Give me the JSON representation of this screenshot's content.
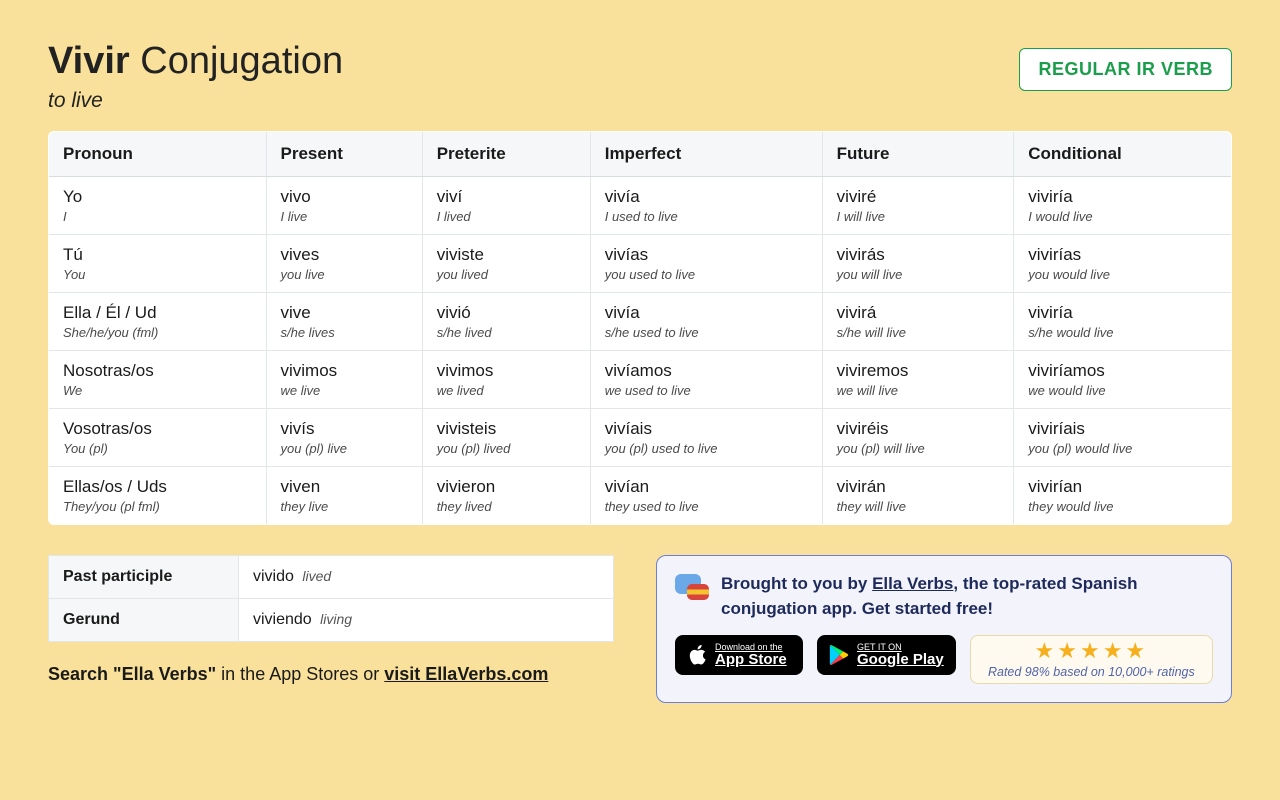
{
  "header": {
    "verb": "Vivir",
    "title_rest": " Conjugation",
    "subtitle": "to live",
    "badge": "REGULAR IR VERB"
  },
  "columns": [
    "Pronoun",
    "Present",
    "Preterite",
    "Imperfect",
    "Future",
    "Conditional"
  ],
  "rows": [
    {
      "pronoun": "Yo",
      "pronoun_sub": "I",
      "cells": [
        {
          "m": "vivo",
          "s": "I live"
        },
        {
          "m": "viví",
          "s": "I lived"
        },
        {
          "m": "vivía",
          "s": "I used to live"
        },
        {
          "m": "viviré",
          "s": "I will live"
        },
        {
          "m": "viviría",
          "s": "I would live"
        }
      ]
    },
    {
      "pronoun": "Tú",
      "pronoun_sub": "You",
      "cells": [
        {
          "m": "vives",
          "s": "you live"
        },
        {
          "m": "viviste",
          "s": "you lived"
        },
        {
          "m": "vivías",
          "s": "you used to live"
        },
        {
          "m": "vivirás",
          "s": "you will live"
        },
        {
          "m": "vivirías",
          "s": "you would live"
        }
      ]
    },
    {
      "pronoun": "Ella / Él / Ud",
      "pronoun_sub": "She/he/you (fml)",
      "cells": [
        {
          "m": "vive",
          "s": "s/he lives"
        },
        {
          "m": "vivió",
          "s": "s/he lived"
        },
        {
          "m": "vivía",
          "s": "s/he used to live"
        },
        {
          "m": "vivirá",
          "s": "s/he will live"
        },
        {
          "m": "viviría",
          "s": "s/he would live"
        }
      ]
    },
    {
      "pronoun": "Nosotras/os",
      "pronoun_sub": "We",
      "cells": [
        {
          "m": "vivimos",
          "s": "we live"
        },
        {
          "m": "vivimos",
          "s": "we lived"
        },
        {
          "m": "vivíamos",
          "s": "we used to live"
        },
        {
          "m": "viviremos",
          "s": "we will live"
        },
        {
          "m": "viviríamos",
          "s": "we would live"
        }
      ]
    },
    {
      "pronoun": "Vosotras/os",
      "pronoun_sub": "You (pl)",
      "cells": [
        {
          "m": "vivís",
          "s": "you (pl) live"
        },
        {
          "m": "vivisteis",
          "s": "you (pl) lived"
        },
        {
          "m": "vivíais",
          "s": "you (pl) used to live"
        },
        {
          "m": "viviréis",
          "s": "you (pl) will live"
        },
        {
          "m": "viviríais",
          "s": "you (pl) would live"
        }
      ]
    },
    {
      "pronoun": "Ellas/os / Uds",
      "pronoun_sub": "They/you (pl fml)",
      "cells": [
        {
          "m": "viven",
          "s": "they live"
        },
        {
          "m": "vivieron",
          "s": "they lived"
        },
        {
          "m": "vivían",
          "s": "they used to live"
        },
        {
          "m": "vivirán",
          "s": "they will live"
        },
        {
          "m": "vivirían",
          "s": "they would live"
        }
      ]
    }
  ],
  "participles": [
    {
      "label": "Past participle",
      "value": "vivido",
      "trans": "lived"
    },
    {
      "label": "Gerund",
      "value": "viviendo",
      "trans": "living"
    }
  ],
  "search_note": {
    "bold": "Search \"Ella Verbs\"",
    "rest": " in the App Stores or ",
    "link": "visit EllaVerbs.com"
  },
  "promo": {
    "pre": "Brought to you by ",
    "link": "Ella Verbs",
    "post": ", the top-rated Spanish conjugation app. Get started free!",
    "appstore_small": "Download on the",
    "appstore_big": "App Store",
    "play_small": "GET IT ON",
    "play_big": "Google Play",
    "stars": "★★★★★",
    "rating_text": "Rated 98% based on 10,000+ ratings"
  },
  "style": {
    "background": "#fae19b",
    "badge_border": "#1b9e4b",
    "promo_bg": "#f2f3fb",
    "promo_border": "#6b7fd7",
    "star_color": "#f6b01e"
  }
}
